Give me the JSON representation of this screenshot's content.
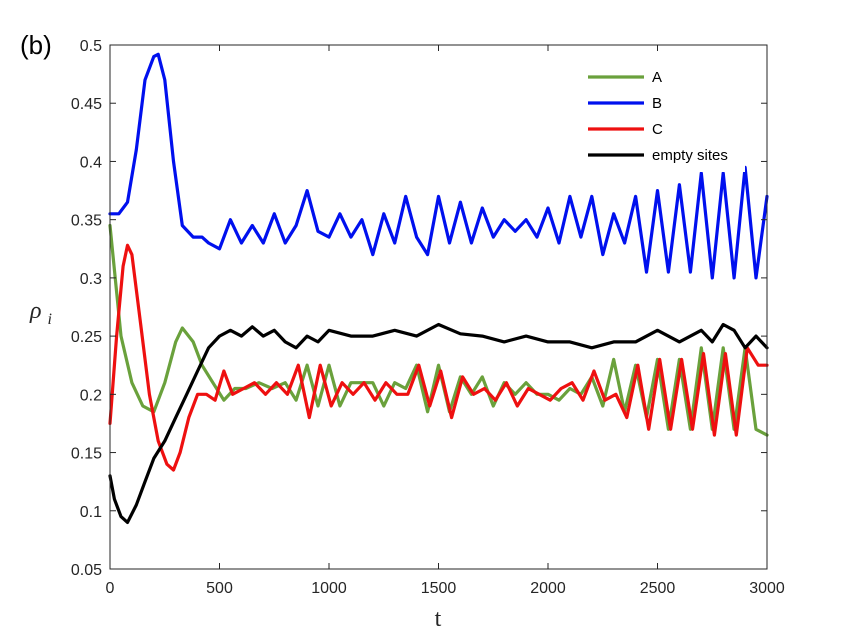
{
  "panel_label": "(b)",
  "chart_data": {
    "type": "line",
    "title": "",
    "xlabel": "t",
    "ylabel": "ρ_i",
    "ylabel_main": "ρ",
    "ylabel_sub": "i",
    "xlim": [
      0,
      3000
    ],
    "ylim": [
      0.05,
      0.5
    ],
    "xticks": [
      0,
      500,
      1000,
      1500,
      2000,
      2500,
      3000
    ],
    "xtick_labels": [
      "0",
      "500",
      "1000",
      "1500",
      "2000",
      "2500",
      "3000"
    ],
    "yticks": [
      0.05,
      0.1,
      0.15,
      0.2,
      0.25,
      0.3,
      0.35,
      0.4,
      0.45,
      0.5
    ],
    "ytick_labels": [
      "0.05",
      "0.1",
      "0.15",
      "0.2",
      "0.25",
      "0.3",
      "0.35",
      "0.4",
      "0.45",
      "0.5"
    ],
    "grid": false,
    "legend_position": "top-right",
    "series": [
      {
        "name": "A",
        "color": "#6aa13c",
        "x": [
          0,
          50,
          100,
          150,
          200,
          250,
          300,
          330,
          380,
          420,
          470,
          520,
          570,
          620,
          680,
          740,
          800,
          850,
          900,
          950,
          1000,
          1050,
          1100,
          1150,
          1200,
          1250,
          1300,
          1350,
          1400,
          1450,
          1500,
          1550,
          1600,
          1650,
          1700,
          1750,
          1800,
          1850,
          1900,
          1950,
          2000,
          2050,
          2100,
          2150,
          2200,
          2250,
          2300,
          2350,
          2400,
          2450,
          2500,
          2550,
          2600,
          2650,
          2700,
          2750,
          2800,
          2850,
          2900,
          2950,
          3000
        ],
        "y": [
          0.345,
          0.25,
          0.21,
          0.19,
          0.185,
          0.21,
          0.245,
          0.257,
          0.245,
          0.225,
          0.21,
          0.195,
          0.205,
          0.205,
          0.21,
          0.205,
          0.21,
          0.195,
          0.225,
          0.19,
          0.225,
          0.19,
          0.21,
          0.21,
          0.21,
          0.19,
          0.21,
          0.205,
          0.225,
          0.185,
          0.225,
          0.185,
          0.215,
          0.2,
          0.215,
          0.19,
          0.21,
          0.2,
          0.21,
          0.2,
          0.2,
          0.195,
          0.205,
          0.2,
          0.215,
          0.19,
          0.23,
          0.185,
          0.225,
          0.18,
          0.23,
          0.17,
          0.23,
          0.17,
          0.24,
          0.17,
          0.24,
          0.17,
          0.24,
          0.17,
          0.165
        ]
      },
      {
        "name": "B",
        "color": "#0010ee",
        "x": [
          0,
          40,
          80,
          120,
          160,
          200,
          220,
          250,
          290,
          330,
          380,
          420,
          450,
          500,
          550,
          600,
          650,
          700,
          750,
          800,
          850,
          900,
          950,
          1000,
          1050,
          1100,
          1150,
          1200,
          1250,
          1300,
          1350,
          1400,
          1450,
          1500,
          1550,
          1600,
          1650,
          1700,
          1750,
          1800,
          1850,
          1900,
          1950,
          2000,
          2050,
          2100,
          2150,
          2200,
          2250,
          2300,
          2350,
          2400,
          2450,
          2500,
          2550,
          2600,
          2650,
          2700,
          2750,
          2800,
          2850,
          2900,
          2950,
          3000
        ],
        "y": [
          0.355,
          0.355,
          0.365,
          0.41,
          0.47,
          0.49,
          0.492,
          0.47,
          0.4,
          0.345,
          0.335,
          0.335,
          0.33,
          0.325,
          0.35,
          0.33,
          0.345,
          0.33,
          0.355,
          0.33,
          0.345,
          0.375,
          0.34,
          0.335,
          0.355,
          0.335,
          0.35,
          0.32,
          0.355,
          0.33,
          0.37,
          0.335,
          0.32,
          0.37,
          0.33,
          0.365,
          0.33,
          0.36,
          0.335,
          0.35,
          0.34,
          0.35,
          0.335,
          0.36,
          0.33,
          0.37,
          0.335,
          0.37,
          0.32,
          0.355,
          0.33,
          0.37,
          0.305,
          0.375,
          0.305,
          0.38,
          0.305,
          0.39,
          0.3,
          0.39,
          0.3,
          0.395,
          0.3,
          0.37
        ]
      },
      {
        "name": "C",
        "color": "#ee1010",
        "x": [
          0,
          30,
          60,
          80,
          100,
          140,
          180,
          220,
          260,
          290,
          320,
          360,
          400,
          440,
          480,
          520,
          560,
          610,
          660,
          710,
          760,
          810,
          860,
          910,
          960,
          1010,
          1060,
          1110,
          1160,
          1210,
          1260,
          1310,
          1360,
          1410,
          1460,
          1510,
          1560,
          1610,
          1660,
          1710,
          1760,
          1810,
          1860,
          1910,
          1960,
          2010,
          2060,
          2110,
          2160,
          2210,
          2260,
          2310,
          2360,
          2410,
          2460,
          2510,
          2560,
          2610,
          2660,
          2710,
          2760,
          2810,
          2860,
          2910,
          2960,
          3000
        ],
        "y": [
          0.175,
          0.25,
          0.31,
          0.328,
          0.32,
          0.26,
          0.2,
          0.16,
          0.14,
          0.135,
          0.15,
          0.18,
          0.2,
          0.2,
          0.195,
          0.22,
          0.2,
          0.205,
          0.21,
          0.2,
          0.21,
          0.2,
          0.225,
          0.18,
          0.225,
          0.19,
          0.21,
          0.2,
          0.21,
          0.195,
          0.21,
          0.2,
          0.2,
          0.225,
          0.19,
          0.22,
          0.18,
          0.215,
          0.2,
          0.205,
          0.195,
          0.21,
          0.19,
          0.205,
          0.2,
          0.195,
          0.205,
          0.21,
          0.195,
          0.22,
          0.195,
          0.2,
          0.18,
          0.225,
          0.17,
          0.23,
          0.17,
          0.23,
          0.17,
          0.235,
          0.165,
          0.235,
          0.165,
          0.24,
          0.225,
          0.225
        ]
      },
      {
        "name": "empty sites",
        "color": "#000000",
        "x": [
          0,
          20,
          50,
          80,
          120,
          160,
          200,
          250,
          300,
          350,
          400,
          450,
          500,
          550,
          600,
          650,
          700,
          750,
          800,
          850,
          900,
          950,
          1000,
          1100,
          1200,
          1300,
          1400,
          1500,
          1600,
          1700,
          1800,
          1900,
          2000,
          2100,
          2200,
          2300,
          2400,
          2500,
          2600,
          2700,
          2750,
          2800,
          2850,
          2900,
          2950,
          3000
        ],
        "y": [
          0.13,
          0.11,
          0.095,
          0.09,
          0.105,
          0.125,
          0.145,
          0.16,
          0.18,
          0.2,
          0.22,
          0.24,
          0.25,
          0.255,
          0.25,
          0.258,
          0.25,
          0.255,
          0.245,
          0.24,
          0.25,
          0.245,
          0.255,
          0.25,
          0.25,
          0.255,
          0.25,
          0.26,
          0.252,
          0.25,
          0.245,
          0.25,
          0.245,
          0.245,
          0.24,
          0.245,
          0.245,
          0.255,
          0.245,
          0.255,
          0.245,
          0.26,
          0.255,
          0.24,
          0.25,
          0.24
        ]
      }
    ]
  }
}
